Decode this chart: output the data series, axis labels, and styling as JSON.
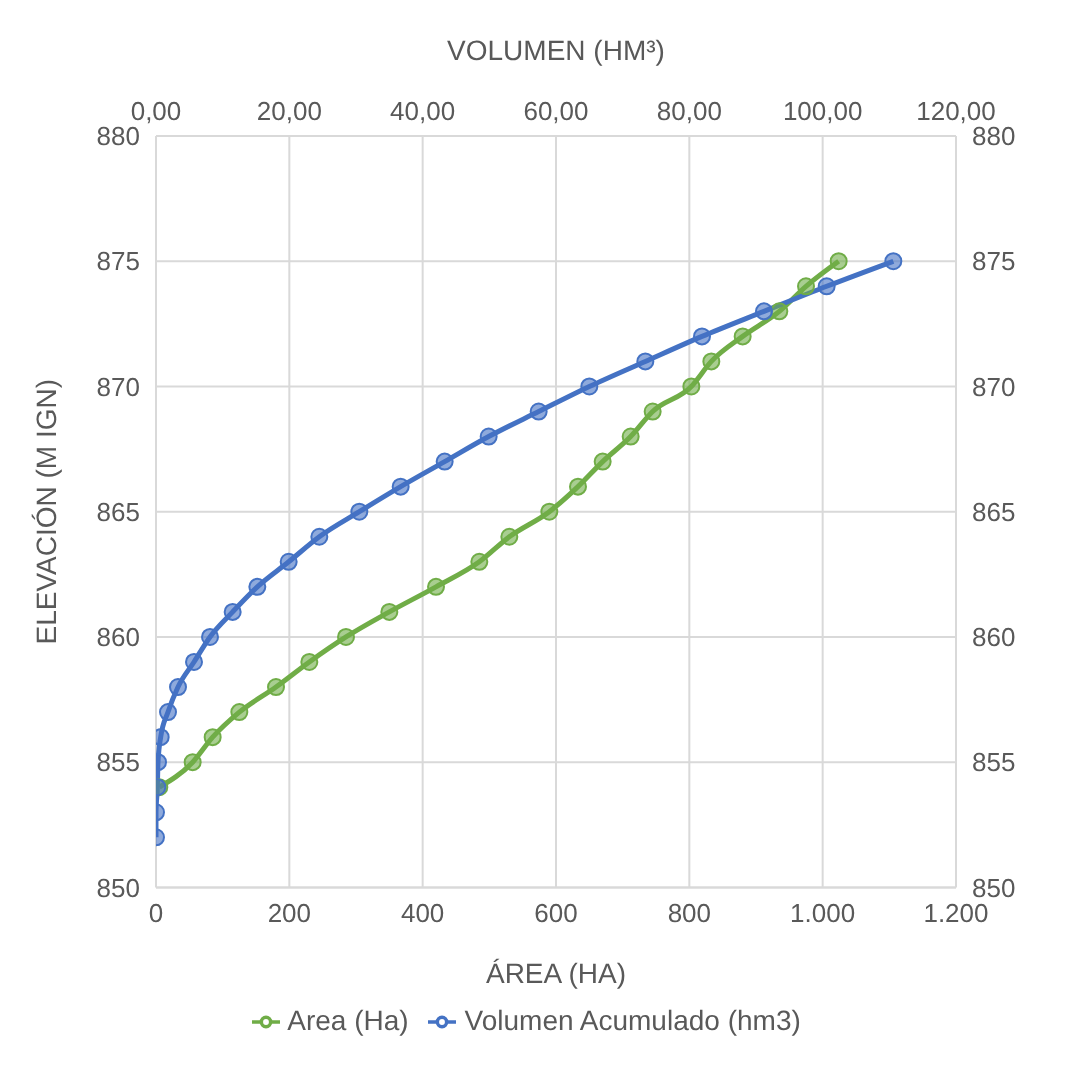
{
  "chart_data": {
    "type": "line",
    "xlabel": "ÁREA (HA)",
    "x2label": "VOLUMEN (HM³)",
    "ylabel": "ELEVACIÓN (M IGN)",
    "xlim": [
      0,
      1200
    ],
    "xticks": [
      0,
      200,
      400,
      600,
      800,
      {
        "value": 1000,
        "label": "1.000"
      },
      {
        "value": 1200,
        "label": "1.200"
      }
    ],
    "x2lim": [
      0,
      120
    ],
    "x2ticks": [
      {
        "value": 0,
        "label": "0,00"
      },
      {
        "value": 20,
        "label": "20,00"
      },
      {
        "value": 40,
        "label": "40,00"
      },
      {
        "value": 60,
        "label": "60,00"
      },
      {
        "value": 80,
        "label": "80,00"
      },
      {
        "value": 100,
        "label": "100,00"
      },
      {
        "value": 120,
        "label": "120,00"
      }
    ],
    "ylim": [
      850,
      880
    ],
    "yticks": [
      850,
      855,
      860,
      865,
      870,
      875,
      880
    ],
    "y2lim": [
      850,
      880
    ],
    "y2ticks": [
      850,
      855,
      860,
      865,
      870,
      875,
      880
    ],
    "grid": true,
    "legend": "bottom",
    "marker": "circle",
    "series": [
      {
        "name": "Area (Ha)",
        "color": "#70ad47",
        "x": [
          5,
          55,
          85,
          125,
          180,
          230,
          285,
          350,
          420,
          485,
          530,
          590,
          633,
          670,
          712,
          745,
          803,
          833,
          880,
          935,
          975,
          1024
        ],
        "values": [
          854,
          855,
          856,
          857,
          858,
          859,
          860,
          861,
          862,
          863,
          864,
          865,
          866,
          867,
          868,
          869,
          870,
          871,
          872,
          873,
          874,
          875
        ]
      },
      {
        "name": "Volumen Acumulado (hm3)",
        "color": "#4472c4",
        "axis": "x2",
        "x": [
          0,
          0,
          0.2,
          0.3,
          0.7,
          1.8,
          3.3,
          5.7,
          8.1,
          11.5,
          15.2,
          19.9,
          24.5,
          30.5,
          36.7,
          43.3,
          49.9,
          57.4,
          65.0,
          73.4,
          81.9,
          91.2,
          100.6,
          110.6
        ],
        "values": [
          852,
          853,
          854,
          855,
          856,
          857,
          858,
          859,
          860,
          861,
          862,
          863,
          864,
          865,
          866,
          867,
          868,
          869,
          870,
          871,
          872,
          873,
          874,
          875
        ]
      }
    ]
  }
}
